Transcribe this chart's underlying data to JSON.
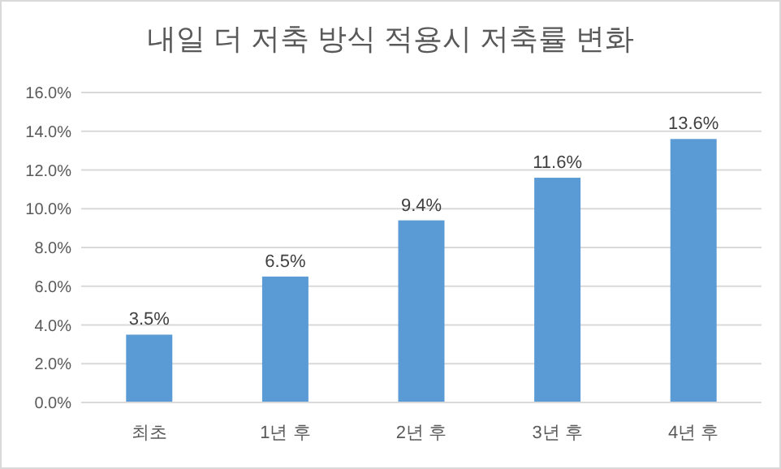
{
  "chart_data": {
    "type": "bar",
    "title": "내일 더 저축 방식 적용시 저축률 변화",
    "categories": [
      "최초",
      "1년 후",
      "2년 후",
      "3년 후",
      "4년 후"
    ],
    "values": [
      3.5,
      6.5,
      9.4,
      11.6,
      13.6
    ],
    "value_labels": [
      "3.5%",
      "6.5%",
      "9.4%",
      "11.6%",
      "13.6%"
    ],
    "color": "#5b9bd5",
    "ylim": [
      0,
      16
    ],
    "yticks": [
      {
        "value": 0,
        "label": "0.0%"
      },
      {
        "value": 2,
        "label": "2.0%"
      },
      {
        "value": 4,
        "label": "4.0%"
      },
      {
        "value": 6,
        "label": "6.0%"
      },
      {
        "value": 8,
        "label": "8.0%"
      },
      {
        "value": 10,
        "label": "10.0%"
      },
      {
        "value": 12,
        "label": "12.0%"
      },
      {
        "value": 14,
        "label": "14.0%"
      },
      {
        "value": 16,
        "label": "16.0%"
      }
    ],
    "grid": "y"
  }
}
